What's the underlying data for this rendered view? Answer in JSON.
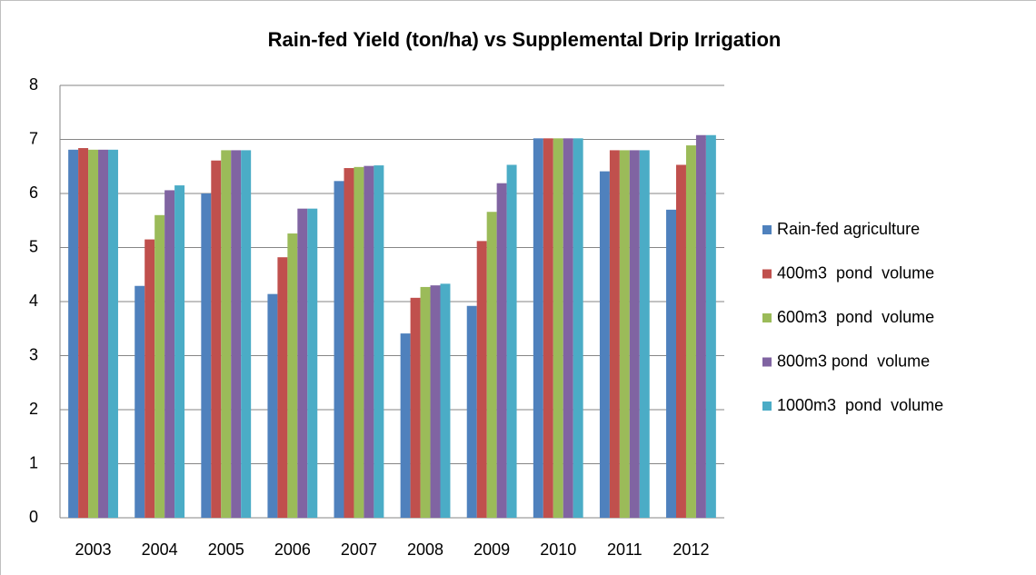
{
  "chart_data": {
    "type": "bar",
    "title": "Rain-fed Yield (ton/ha) vs Supplemental Drip Irrigation",
    "categories": [
      "2003",
      "2004",
      "2005",
      "2006",
      "2007",
      "2008",
      "2009",
      "2010",
      "2011",
      "2012"
    ],
    "series": [
      {
        "name": "Rain-fed agriculture",
        "color": "#4f81bd",
        "values": [
          6.81,
          4.29,
          6.0,
          4.14,
          6.23,
          3.41,
          3.92,
          7.02,
          6.41,
          5.7
        ]
      },
      {
        "name": "400m3  pond  volume",
        "color": "#c0504d",
        "values": [
          6.84,
          5.15,
          6.61,
          4.82,
          6.47,
          4.07,
          5.12,
          7.02,
          6.8,
          6.53
        ]
      },
      {
        "name": "600m3  pond  volume",
        "color": "#9bbb59",
        "values": [
          6.81,
          5.6,
          6.8,
          5.26,
          6.49,
          4.27,
          5.66,
          7.02,
          6.8,
          6.89
        ]
      },
      {
        "name": "800m3 pond  volume",
        "color": "#8064a2",
        "values": [
          6.81,
          6.06,
          6.8,
          5.72,
          6.51,
          4.3,
          6.19,
          7.02,
          6.8,
          7.08
        ]
      },
      {
        "name": "1000m3  pond  volume",
        "color": "#4bacc6",
        "values": [
          6.81,
          6.15,
          6.8,
          5.72,
          6.52,
          4.33,
          6.53,
          7.02,
          6.8,
          7.08
        ]
      }
    ],
    "ylim": [
      0,
      8
    ],
    "yticks": [
      0,
      1,
      2,
      3,
      4,
      5,
      6,
      7,
      8
    ],
    "grid": true,
    "legend": "right"
  }
}
